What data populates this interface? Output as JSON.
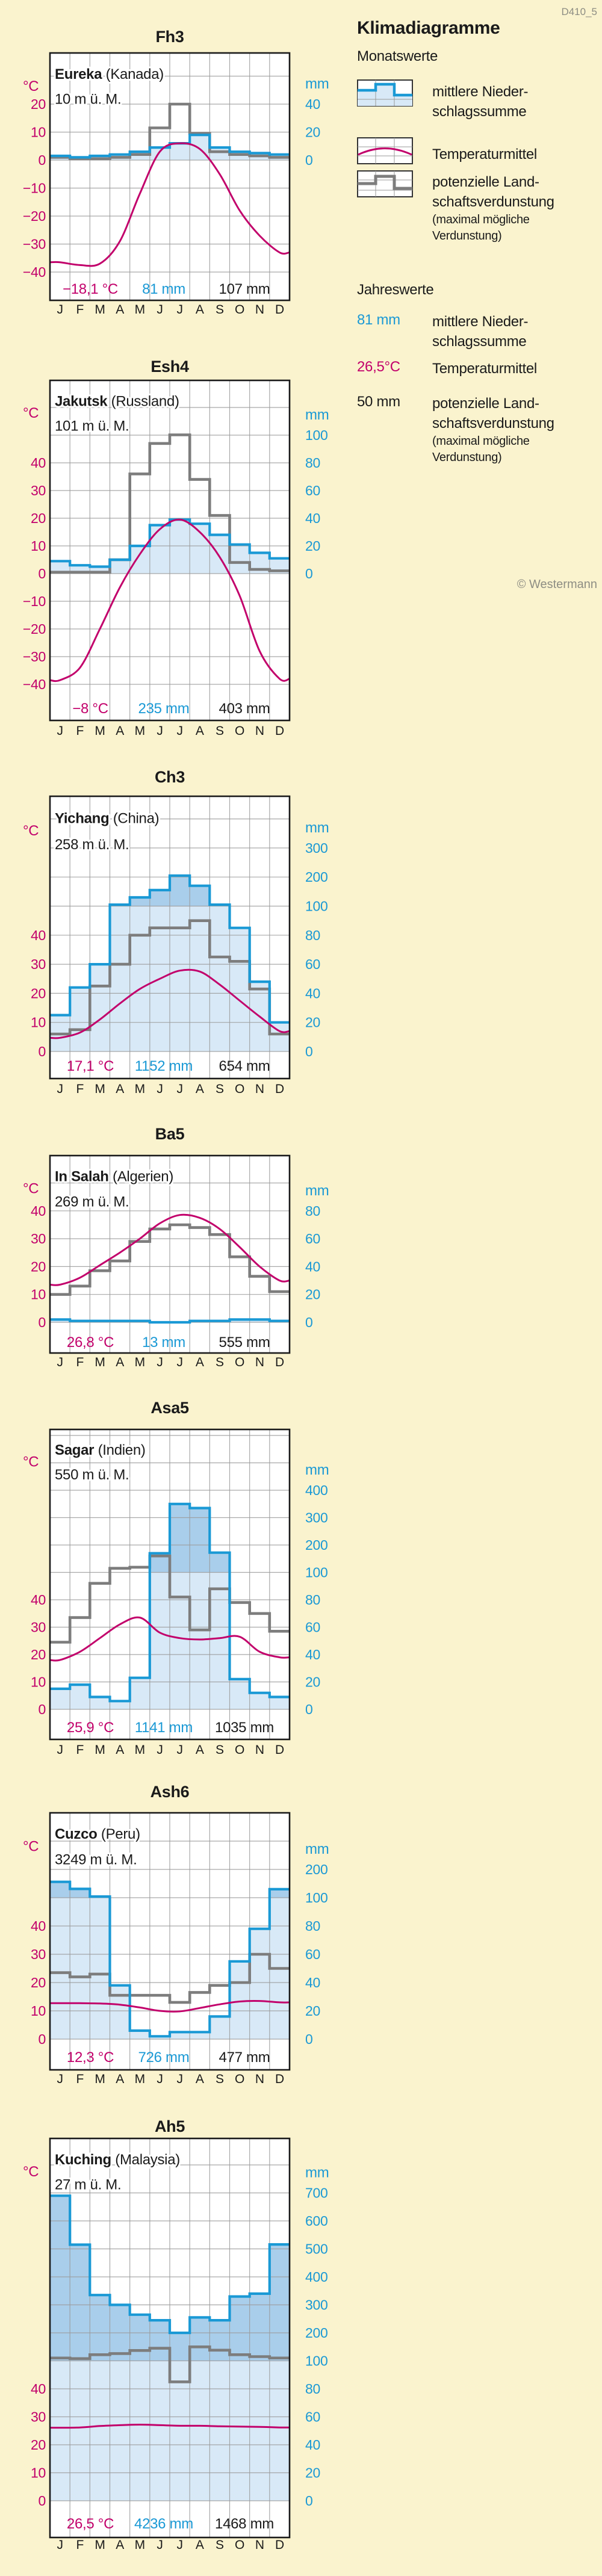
{
  "page": {
    "code": "D410_5",
    "copyright": "© Westermann"
  },
  "legend": {
    "title": "Klimadiagramme",
    "monthly_title": "Monatswerte",
    "items": [
      {
        "key": "precipitation",
        "label_lines": [
          "mittlere Nieder-",
          "schlagssumme"
        ]
      },
      {
        "key": "temperature",
        "label_lines": [
          "Temperaturmittel"
        ]
      },
      {
        "key": "evaporation",
        "label_lines": [
          "potenzielle Land-",
          "schaftsverdunstung"
        ],
        "sub_lines": [
          "(maximal mögliche",
          "Verdunstung)"
        ]
      }
    ],
    "annual_title": "Jahreswerte",
    "annual_items": [
      {
        "value": "81 mm",
        "color": "precipitation",
        "label_lines": [
          "mittlere Nieder-",
          "schlagssumme"
        ]
      },
      {
        "value": "26,5°C",
        "color": "temperature",
        "label_lines": [
          "Temperaturmittel"
        ]
      },
      {
        "value": "50 mm",
        "color": "text",
        "label_lines": [
          "potenzielle Land-",
          "schaftsverdunstung"
        ],
        "sub_lines": [
          "(maximal mögliche",
          "Verdunstung)"
        ]
      }
    ]
  },
  "months": [
    "J",
    "F",
    "M",
    "A",
    "M",
    "J",
    "J",
    "A",
    "S",
    "O",
    "N",
    "D"
  ],
  "units": {
    "temperature": "°C",
    "precipitation": "mm"
  },
  "colors": {
    "background": "#faf3ce",
    "plot_bg": "#ffffff",
    "grid": "#9a9a9a",
    "border": "#1a1a1a",
    "precip_line": "#1a99d5",
    "precip_fill_light": "#d8e9f7",
    "precip_fill_dark": "#a9ceeb",
    "temp_line": "#c2006b",
    "evap_line": "#7d7d7d",
    "muted": "#8d8d83",
    "text": "#1a1a1a"
  },
  "chart_data": [
    {
      "type": "climate-diagram",
      "id": "Fh3",
      "station": "Eureka",
      "country": "(Kanada)",
      "elevation": "10 m ü. M.",
      "temperature_c": [
        -36.5,
        -37.5,
        -37,
        -29,
        -12,
        3,
        6,
        4,
        -5,
        -18,
        -27,
        -33
      ],
      "precipitation_mm": [
        3,
        2,
        3,
        4,
        6,
        9,
        12,
        18,
        9,
        6,
        5,
        4
      ],
      "evaporation_mm": [
        2,
        1,
        1,
        2,
        4,
        23,
        40,
        19,
        6,
        4,
        3,
        2
      ],
      "annual": {
        "temperature": "−18,1 °C",
        "precipitation": "81 mm",
        "evaporation": "107 mm"
      },
      "temp_ticks": [
        20,
        10,
        0,
        -10,
        -20,
        -30,
        -40
      ],
      "mm_ticks": [
        40,
        20,
        0
      ]
    },
    {
      "type": "climate-diagram",
      "id": "Esh4",
      "station": "Jakutsk",
      "country": "(Russland)",
      "elevation": "101 m ü. M.",
      "temperature_c": [
        -38.5,
        -34,
        -20,
        -5,
        7,
        16,
        19.5,
        15,
        6,
        -8,
        -28,
        -38
      ],
      "precipitation_mm": [
        9,
        6,
        5,
        10,
        20,
        35,
        39,
        36,
        28,
        21,
        15,
        11
      ],
      "evaporation_mm": [
        1,
        1,
        1,
        10,
        72,
        94,
        101,
        68,
        42,
        8,
        3,
        2
      ],
      "annual": {
        "temperature": "−8 °C",
        "precipitation": "235 mm",
        "evaporation": "403 mm"
      },
      "temp_ticks": [
        40,
        30,
        20,
        10,
        0,
        -10,
        -20,
        -30,
        -40
      ],
      "mm_ticks": [
        100,
        80,
        60,
        40,
        20,
        0
      ]
    },
    {
      "type": "climate-diagram",
      "id": "Ch3",
      "station": "Yichang",
      "country": "(China)",
      "elevation": "258 m ü. M.",
      "temperature_c": [
        4.7,
        6.5,
        11,
        16.5,
        21.5,
        25,
        27.8,
        27.5,
        23,
        17.5,
        12,
        7
      ],
      "precipitation_mm": [
        25,
        44,
        60,
        105,
        130,
        155,
        205,
        170,
        105,
        85,
        48,
        20
      ],
      "evaporation_mm": [
        12,
        15,
        45,
        60,
        80,
        85,
        85,
        90,
        65,
        62,
        43,
        12
      ],
      "annual": {
        "temperature": "17,1 °C",
        "precipitation": "1152 mm",
        "evaporation": "654 mm"
      },
      "temp_ticks": [
        40,
        30,
        20,
        10,
        0
      ],
      "mm_ticks": [
        300,
        200,
        100,
        80,
        60,
        40,
        20,
        0
      ]
    },
    {
      "type": "climate-diagram",
      "id": "Ba5",
      "station": "In Salah",
      "country": "(Algerien)",
      "elevation": "269 m ü. M.",
      "temperature_c": [
        13.5,
        16,
        20.5,
        25,
        30,
        35.5,
        38.5,
        37.5,
        33.5,
        27,
        20,
        15
      ],
      "precipitation_mm": [
        2,
        1,
        1,
        1,
        1,
        0,
        0,
        1,
        1,
        2,
        2,
        1
      ],
      "evaporation_mm": [
        20,
        26,
        37,
        44,
        58,
        67,
        70,
        68,
        63,
        47,
        33,
        22
      ],
      "annual": {
        "temperature": "26,8 °C",
        "precipitation": "13 mm",
        "evaporation": "555 mm"
      },
      "temp_ticks": [
        40,
        30,
        20,
        10,
        0
      ],
      "mm_ticks": [
        80,
        60,
        40,
        20,
        0
      ]
    },
    {
      "type": "climate-diagram",
      "id": "Asa5",
      "station": "Sagar",
      "country": "(Indien)",
      "elevation": "550 m ü. M.",
      "temperature_c": [
        18,
        21,
        26,
        31,
        33.5,
        28,
        26,
        25.5,
        26,
        26.5,
        21,
        19
      ],
      "precipitation_mm": [
        15,
        18,
        9,
        6,
        23,
        170,
        350,
        335,
        172,
        22,
        12,
        9
      ],
      "evaporation_mm": [
        49,
        67,
        92,
        115,
        119,
        160,
        82,
        58,
        88,
        78,
        70,
        57
      ],
      "annual": {
        "temperature": "25,9 °C",
        "precipitation": "1141 mm",
        "evaporation": "1035 mm"
      },
      "temp_ticks": [
        40,
        30,
        20,
        10,
        0
      ],
      "mm_ticks": [
        400,
        300,
        200,
        100,
        80,
        60,
        40,
        20,
        0
      ]
    },
    {
      "type": "climate-diagram",
      "id": "Ash6",
      "station": "Cuzco",
      "country": "(Peru)",
      "elevation": "3249 m ü. M.",
      "temperature_c": [
        12.7,
        12.7,
        12.6,
        12.2,
        11.2,
        10,
        9.8,
        11,
        12.3,
        13.3,
        13.5,
        13
      ],
      "precipitation_mm": [
        156,
        131,
        104,
        38,
        6,
        2,
        5,
        5,
        16,
        55,
        78,
        130
      ],
      "evaporation_mm": [
        47,
        44,
        46,
        31,
        31,
        31,
        26,
        33,
        38,
        40,
        60,
        50
      ],
      "annual": {
        "temperature": "12,3 °C",
        "precipitation": "726 mm",
        "evaporation": "477 mm"
      },
      "temp_ticks": [
        40,
        30,
        20,
        10,
        0
      ],
      "mm_ticks": [
        200,
        100,
        80,
        60,
        40,
        20,
        0
      ]
    },
    {
      "type": "climate-diagram",
      "id": "Ah5",
      "station": "Kuching",
      "country": "(Malaysia)",
      "elevation": "27 m ü. M.",
      "temperature_c": [
        26.1,
        26.2,
        26.7,
        27,
        27.2,
        27,
        26.8,
        26.8,
        26.6,
        26.5,
        26.4,
        26.2
      ],
      "precipitation_mm": [
        690,
        515,
        335,
        300,
        265,
        245,
        200,
        255,
        245,
        330,
        340,
        516
      ],
      "evaporation_mm": [
        110,
        108,
        122,
        126,
        137,
        145,
        85,
        150,
        138,
        122,
        115,
        110
      ],
      "annual": {
        "temperature": "26,5 °C",
        "precipitation": "4236 mm",
        "evaporation": "1468 mm"
      },
      "temp_ticks": [
        40,
        30,
        20,
        10,
        0
      ],
      "mm_ticks": [
        700,
        600,
        500,
        400,
        300,
        200,
        100,
        80,
        60,
        40,
        20,
        0
      ]
    }
  ]
}
